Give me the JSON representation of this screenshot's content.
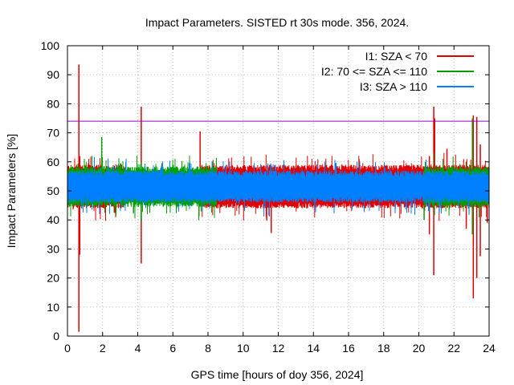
{
  "chart_data": {
    "type": "line",
    "title": "Impact Parameters. SISTED rt 30s mode. 356, 2024.",
    "xlabel": "GPS time [hours of doy 356, 2024]",
    "ylabel": "Impact Parameters [%]",
    "xlim": [
      0,
      24
    ],
    "ylim": [
      0,
      100
    ],
    "xticks": [
      0,
      2,
      4,
      6,
      8,
      10,
      12,
      14,
      16,
      18,
      20,
      22,
      24
    ],
    "yticks": [
      0,
      10,
      20,
      30,
      40,
      50,
      60,
      70,
      80,
      90,
      100
    ],
    "grid": true,
    "legend_position": "top-right",
    "threshold": {
      "value": 74,
      "color": "#9400d3"
    },
    "series": [
      {
        "name": "I1: SZA < 70",
        "color": "#e00000",
        "baseline": 51.5,
        "band_high": [
          57,
          59
        ],
        "band_low": [
          44,
          46
        ],
        "x_ranges": [
          [
            0,
            3.2
          ],
          [
            7.6,
            24
          ]
        ],
        "spikes": [
          {
            "x": 0.65,
            "high": 93.5,
            "low": 1.5
          },
          {
            "x": 0.7,
            "high": 62,
            "low": 28
          },
          {
            "x": 4.2,
            "high": 79,
            "low": 25
          },
          {
            "x": 7.55,
            "high": 70.5,
            "low": 47
          },
          {
            "x": 11.6,
            "high": 58,
            "low": 35.5
          },
          {
            "x": 20.85,
            "high": 79,
            "low": 21
          },
          {
            "x": 20.6,
            "high": 62,
            "low": 35
          },
          {
            "x": 20.9,
            "high": 75,
            "low": 45
          },
          {
            "x": 23.1,
            "high": 76,
            "low": 13
          },
          {
            "x": 23.3,
            "high": 75.5,
            "low": 20
          },
          {
            "x": 23.5,
            "high": 66,
            "low": 27.5
          },
          {
            "x": 22.7,
            "high": 60,
            "low": 37
          },
          {
            "x": 23.9,
            "high": 58,
            "low": 39
          },
          {
            "x": 21.6,
            "high": 64.5,
            "low": 47
          }
        ]
      },
      {
        "name": "I2: 70 <= SZA <= 110",
        "color": "#00a000",
        "baseline": 51.5,
        "band_high": [
          56.5,
          58.5
        ],
        "band_low": [
          44.5,
          46.5
        ],
        "x_ranges": [
          [
            0,
            8.5
          ],
          [
            20.3,
            24
          ]
        ],
        "spikes": [
          {
            "x": 1.95,
            "high": 68.5,
            "low": 45
          },
          {
            "x": 4.2,
            "high": 60,
            "low": 39.5
          },
          {
            "x": 23.05,
            "high": 75,
            "low": 35
          },
          {
            "x": 20.3,
            "high": 57,
            "low": 40
          }
        ]
      },
      {
        "name": "I3: SZA > 110",
        "color": "#0080ff",
        "baseline": 51.5,
        "band_high": [
          55,
          57
        ],
        "band_low": [
          46,
          48
        ],
        "x_ranges": [
          [
            0,
            24
          ]
        ],
        "spikes": []
      }
    ]
  }
}
